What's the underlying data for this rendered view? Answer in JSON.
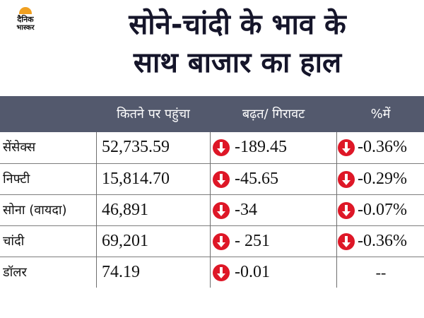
{
  "logo": {
    "line1": "दैनिक",
    "line2": "भास्कर"
  },
  "title": {
    "line1": "सोने-चांदी के भाव के",
    "line2": "साथ बाजार का हाल"
  },
  "table": {
    "headers": [
      "",
      "कितने पर पहुंचा",
      "बढ़त/ गिरावट",
      "%में"
    ],
    "rows": [
      {
        "name": "सेंसेक्स",
        "value": "52,735.59",
        "change": "-189.45",
        "pct": "-0.36%"
      },
      {
        "name": "निफ्टी",
        "value": "15,814.70",
        "change": "-45.65",
        "pct": "-0.29%"
      },
      {
        "name": "सोना (वायदा)",
        "value": "46,891",
        "change": "-34",
        "pct": "-0.07%"
      },
      {
        "name": "चांदी",
        "value": "69,201",
        "change": "- 251",
        "pct": "-0.36%"
      },
      {
        "name": "डॉलर",
        "value": "74.19",
        "change": "-0.01",
        "pct": "--"
      }
    ]
  },
  "colors": {
    "header_bg": "#53596d",
    "down_indicator": "#de1727",
    "logo_accent": "#f0a020"
  },
  "icons": {
    "down": "down-arrow-circle-icon"
  }
}
